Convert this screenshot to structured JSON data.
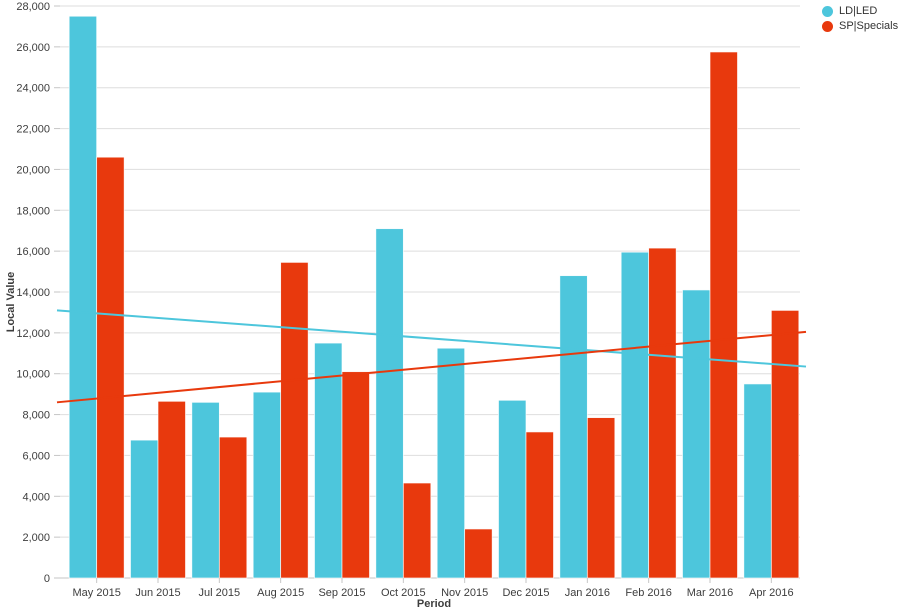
{
  "chart_data": {
    "type": "bar",
    "title": "",
    "xlabel": "Period",
    "ylabel": "Local Value",
    "ylim": [
      0,
      28000
    ],
    "ytick_step": 2000,
    "grid": true,
    "legend_position": "top-right",
    "categories": [
      "May 2015",
      "Jun 2015",
      "Jul 2015",
      "Aug 2015",
      "Sep 2015",
      "Oct 2015",
      "Nov 2015",
      "Dec 2015",
      "Jan 2016",
      "Feb 2016",
      "Mar 2016",
      "Apr 2016"
    ],
    "series": [
      {
        "name": "LD|LED",
        "color": "#4DC6DC",
        "values": [
          27500,
          6750,
          8600,
          9100,
          11500,
          17100,
          11250,
          8700,
          14800,
          15950,
          14100,
          9500
        ]
      },
      {
        "name": "SP|Specials",
        "color": "#E8390D",
        "values": [
          20600,
          8650,
          6900,
          15450,
          10100,
          4650,
          2400,
          7150,
          7850,
          16150,
          25750,
          13100
        ]
      }
    ],
    "trendlines": [
      {
        "series": "LD|LED",
        "color": "#4DC6DC",
        "start_value": 13100,
        "end_value": 10350
      },
      {
        "series": "SP|Specials",
        "color": "#E8390D",
        "start_value": 8600,
        "end_value": 12050
      }
    ]
  }
}
